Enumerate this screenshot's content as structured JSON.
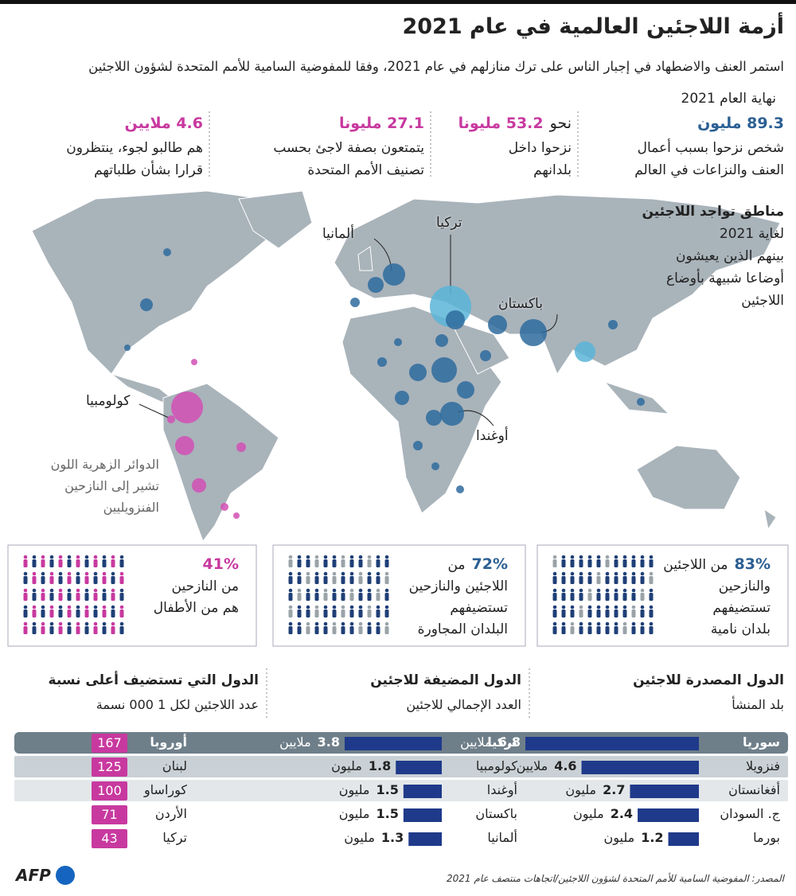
{
  "header": {
    "title": "أزمة اللاجئين العالمية في عام 2021",
    "subtitle": "استمر العنف والاضطهاد في إجبار الناس على ترك منازلهم في عام 2021، وفقا للمفوضية السامية للأمم المتحدة لشؤون اللاجئين"
  },
  "stats": {
    "date_label": "نهاية العام 2021",
    "items": [
      {
        "figure": "89.3 مليون",
        "color": "#2b5f93",
        "lines": [
          "شخص نزحوا بسبب أعمال",
          "العنف والنزاعات في العالم"
        ]
      },
      {
        "prefix": "نحو",
        "figure": "53.2 مليونا",
        "color": "#c8399f",
        "lines": [
          "نزحوا داخل",
          "بلدانهم"
        ]
      },
      {
        "figure": "27.1 مليونا",
        "color": "#c8399f",
        "lines": [
          "يتمتعون بصفة لاجئ بحسب",
          "تصنيف الأمم المتحدة"
        ]
      },
      {
        "figure": "4.6 ملايين",
        "color": "#c8399f",
        "lines": [
          "هم طالبو لجوء، ينتظرون",
          "قرارا بشأن طلباتهم"
        ]
      }
    ]
  },
  "map": {
    "title": "مناطق تواجد اللاجئين",
    "lines": [
      "لغاية 2021",
      "بينهم الذين يعيشون",
      "أوضاعا شبيهة بأوضاع",
      "اللاجئين"
    ],
    "labels": [
      "ألمانيا",
      "تركيا",
      "باكستان",
      "كولومبيا",
      "أوغندا"
    ],
    "note_lines": [
      "الدوائر الزهرية اللون",
      "تشير إلى النازحين",
      "الفنزويليين"
    ]
  },
  "panels": [
    {
      "percent": "83%",
      "lead": "من اللاجئين",
      "lines": [
        "والنازحين",
        "تستضيفهم",
        "بلدان نامية"
      ]
    },
    {
      "percent": "72%",
      "lead": "من",
      "lines": [
        "اللاجئين والنازحين",
        "تستضيفهم",
        "البلدان المجاورة"
      ]
    },
    {
      "percent": "41%",
      "lines": [
        "من النازحين",
        "هم من الأطفال"
      ]
    }
  ],
  "tables": {
    "origin": {
      "title": "الدول المصدرة للاجئين",
      "subtitle": "بلد المنشأ",
      "rows": [
        {
          "name": "سوريا",
          "value": 6.8,
          "unit": "ملايين"
        },
        {
          "name": "فنزويلا",
          "value": 4.6,
          "unit": "ملايين"
        },
        {
          "name": "أفغانستان",
          "value": 2.7,
          "unit": "مليون"
        },
        {
          "name": "ج. السودان",
          "value": 2.4,
          "unit": "مليون"
        },
        {
          "name": "بورما",
          "value": 1.2,
          "unit": "مليون"
        }
      ]
    },
    "hosts": {
      "title": "الدول المضيفة للاجئين",
      "subtitle": "العدد الإجمالي للاجئين",
      "rows": [
        {
          "name": "تركيا",
          "value": 3.8,
          "unit": "ملايين"
        },
        {
          "name": "كولومبيا",
          "value": 1.8,
          "unit": "مليون"
        },
        {
          "name": "أوغندا",
          "value": 1.5,
          "unit": "مليون"
        },
        {
          "name": "باكستان",
          "value": 1.5,
          "unit": "مليون"
        },
        {
          "name": "ألمانيا",
          "value": 1.3,
          "unit": "مليون"
        }
      ]
    },
    "density": {
      "title": "الدول التي تستضيف أعلى نسبة",
      "subtitle": "عدد اللاجئين لكل 1 000 نسمة",
      "rows": [
        {
          "name": "أوروبا",
          "value": 167
        },
        {
          "name": "لبنان",
          "value": 125
        },
        {
          "name": "كوراساو",
          "value": 100
        },
        {
          "name": "الأردن",
          "value": 71
        },
        {
          "name": "تركيا",
          "value": 43
        }
      ]
    }
  },
  "footer": {
    "logo": "AFP",
    "source": "المصدر: المفوضية السامية للأمم المتحدة لشؤون اللاجئين/اتجاهات منتصف عام 2021"
  }
}
